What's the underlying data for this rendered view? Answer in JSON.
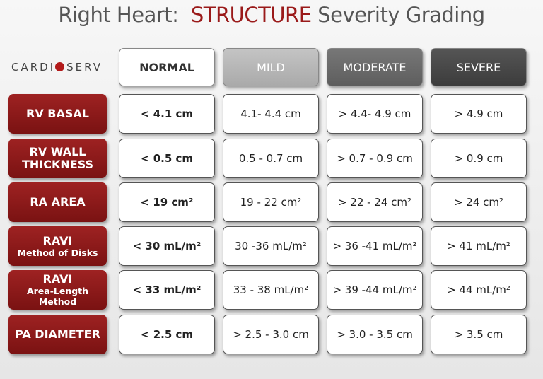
{
  "title": {
    "prefix": "Right Heart:",
    "highlight": "STRUCTURE",
    "suffix": "Severity Grading"
  },
  "logo": {
    "left": "CARDI",
    "right": "SERV"
  },
  "table": {
    "columns": [
      "NORMAL",
      "MILD",
      "MODERATE",
      "SEVERE"
    ],
    "rows": [
      {
        "label": "RV BASAL",
        "cells": [
          "< 4.1 cm",
          "4.1- 4.4 cm",
          "> 4.4- 4.9 cm",
          "> 4.9 cm"
        ]
      },
      {
        "label": "RV WALL THICKNESS",
        "cells": [
          "< 0.5 cm",
          "0.5 - 0.7 cm",
          "> 0.7 - 0.9 cm",
          "> 0.9 cm"
        ]
      },
      {
        "label": "RA AREA",
        "cells": [
          "< 19 cm²",
          "19 - 22 cm²",
          "> 22 - 24 cm²",
          "> 24 cm²"
        ]
      },
      {
        "label": "RAVI",
        "sublabel": "Method of Disks",
        "cells": [
          "< 30 mL/m²",
          "30 -36 mL/m²",
          "> 36 -41 mL/m²",
          "> 41 mL/m²"
        ]
      },
      {
        "label": "RAVI",
        "sublabel": "Area-Length Method",
        "cells": [
          "< 33 mL/m²",
          "33 - 38 mL/m²",
          "> 39 -44 mL/m²",
          "> 44 mL/m²"
        ]
      },
      {
        "label": "PA DIAMETER",
        "cells": [
          "< 2.5 cm",
          "> 2.5 - 3.0 cm",
          "> 3.0 - 3.5 cm",
          "> 3.5 cm"
        ]
      }
    ]
  }
}
